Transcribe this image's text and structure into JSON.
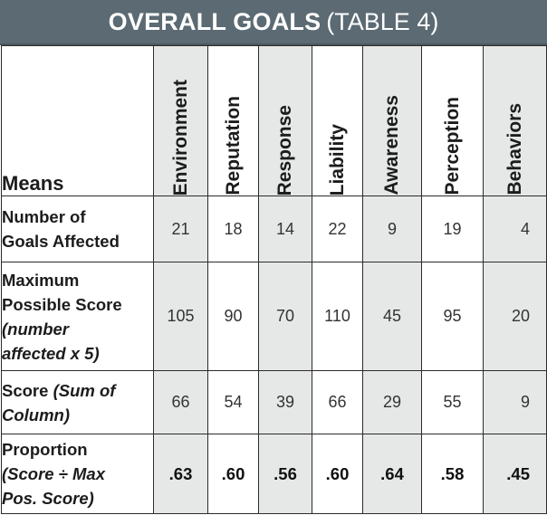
{
  "title": {
    "main": "OVERALL GOALS",
    "sub": "(TABLE 4)"
  },
  "table": {
    "corner_header": "Means",
    "columns": [
      "Environment",
      "Reputation",
      "Response",
      "Liability",
      "Awareness",
      "Perception",
      "Behaviors"
    ],
    "rows": [
      {
        "label_lines": [
          "Number of",
          "Goals Affected"
        ],
        "label_italic_lines": [],
        "values": [
          "21",
          "18",
          "14",
          "22",
          "9",
          "19",
          "4"
        ]
      },
      {
        "label_lines": [
          "Maximum",
          "Possible Score"
        ],
        "label_italic_lines": [
          "(number",
          "affected x 5)"
        ],
        "values": [
          "105",
          "90",
          "70",
          "110",
          "45",
          "95",
          "20"
        ]
      },
      {
        "label_lines": [
          "Score"
        ],
        "label_italic_lines": [
          "(Sum of",
          "Column)"
        ],
        "values": [
          "66",
          "54",
          "39",
          "66",
          "29",
          "55",
          "9"
        ]
      },
      {
        "label_lines": [
          "Proportion"
        ],
        "label_italic_lines": [
          "(Score ÷ Max",
          "Pos. Score)"
        ],
        "values": [
          ".63",
          ".60",
          ".56",
          ".60",
          ".64",
          ".58",
          ".45"
        ]
      }
    ]
  },
  "colors": {
    "title_bar": "#5b6a73",
    "shaded_cell": "#e6e8e8",
    "border": "#2b2b2b"
  }
}
